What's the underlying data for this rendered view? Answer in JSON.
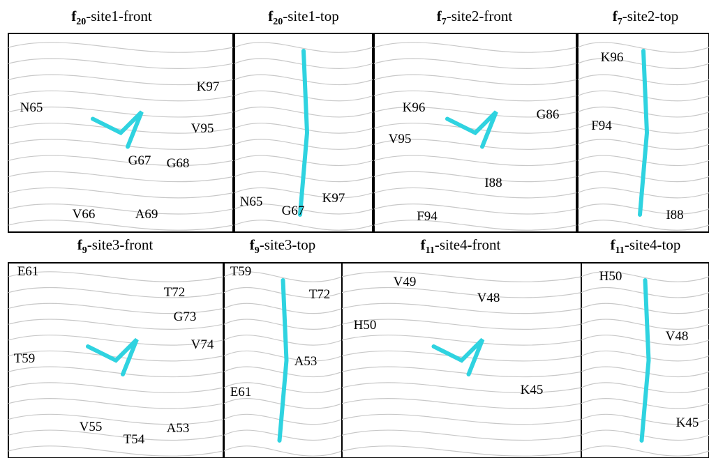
{
  "panels": [
    {
      "title": {
        "letter": "f",
        "subscript": "20",
        "rest": "-site1-front"
      },
      "labels": [
        "N65",
        "K97",
        "V95",
        "G67",
        "G68",
        "V66",
        "A69"
      ]
    },
    {
      "title": {
        "letter": "f",
        "subscript": "20",
        "rest": "-site1-top"
      },
      "labels": [
        "K97",
        "N65",
        "G67"
      ]
    },
    {
      "title": {
        "letter": "f",
        "subscript": "7",
        "rest": "-site2-front"
      },
      "labels": [
        "K96",
        "G86",
        "V95",
        "I88",
        "F94"
      ]
    },
    {
      "title": {
        "letter": "f",
        "subscript": "7",
        "rest": "-site2-top"
      },
      "labels": [
        "K96",
        "F94",
        "I88"
      ]
    },
    {
      "title": {
        "letter": "f",
        "subscript": "9",
        "rest": "-site3-front"
      },
      "labels": [
        "E61",
        "T72",
        "G73",
        "T59",
        "V74",
        "V55",
        "T54",
        "A53"
      ]
    },
    {
      "title": {
        "letter": "f",
        "subscript": "9",
        "rest": "-site3-top"
      },
      "labels": [
        "T59",
        "T72",
        "A53",
        "E61"
      ]
    },
    {
      "title": {
        "letter": "f",
        "subscript": "11",
        "rest": "-site4-front"
      },
      "labels": [
        "V49",
        "V48",
        "H50",
        "K45"
      ]
    },
    {
      "title": {
        "letter": "f",
        "subscript": "11",
        "rest": "-site4-top"
      },
      "labels": [
        "H50",
        "V48",
        "K45"
      ]
    }
  ]
}
